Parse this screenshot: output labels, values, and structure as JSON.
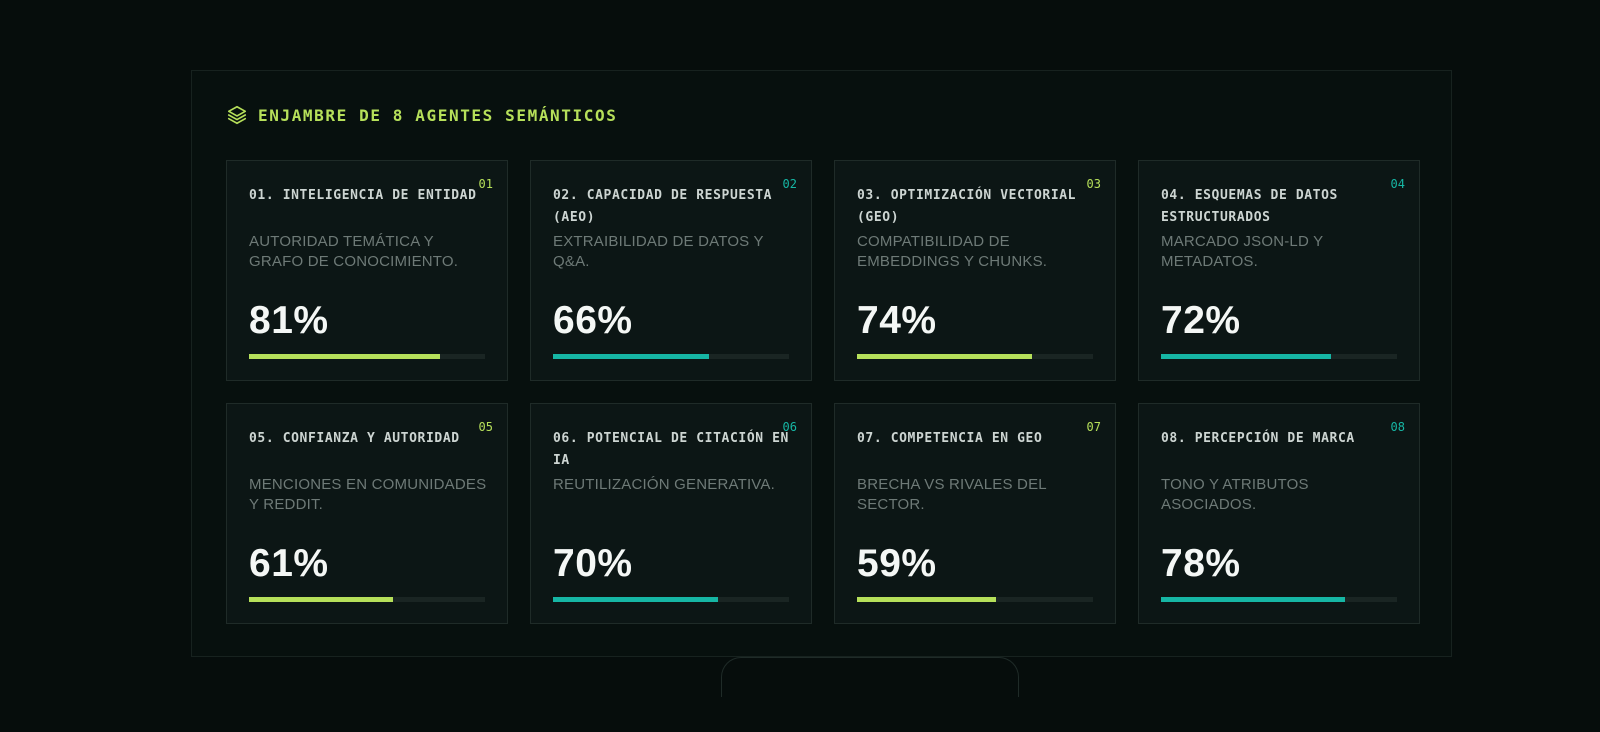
{
  "header": {
    "title": "ENJAMBRE DE 8 AGENTES SEMÁNTICOS",
    "icon": "layers-icon",
    "color": "#b6e05a"
  },
  "colors": {
    "lime": "#b6e05a",
    "teal": "#16b6a4"
  },
  "agents": [
    {
      "num": "01",
      "name": "01. INTELIGENCIA DE ENTIDAD",
      "desc": "AUTORIDAD TEMÁTICA Y GRAFO DE CONOCIMIENTO.",
      "pct": "81%",
      "value": 81,
      "accent": "#b6e05a"
    },
    {
      "num": "02",
      "name": "02. CAPACIDAD DE RESPUESTA (AEO)",
      "desc": "EXTRAIBILIDAD DE DATOS Y Q&A.",
      "pct": "66%",
      "value": 66,
      "accent": "#16b6a4"
    },
    {
      "num": "03",
      "name": "03. OPTIMIZACIÓN VECTORIAL (GEO)",
      "desc": "COMPATIBILIDAD DE EMBEDDINGS Y CHUNKS.",
      "pct": "74%",
      "value": 74,
      "accent": "#b6e05a"
    },
    {
      "num": "04",
      "name": "04. ESQUEMAS DE DATOS ESTRUCTURADOS",
      "desc": "MARCADO JSON-LD Y METADATOS.",
      "pct": "72%",
      "value": 72,
      "accent": "#16b6a4"
    },
    {
      "num": "05",
      "name": "05. CONFIANZA Y AUTORIDAD",
      "desc": "MENCIONES EN COMUNIDADES Y REDDIT.",
      "pct": "61%",
      "value": 61,
      "accent": "#b6e05a"
    },
    {
      "num": "06",
      "name": "06. POTENCIAL DE CITACIÓN EN IA",
      "desc": "REUTILIZACIÓN GENERATIVA.",
      "pct": "70%",
      "value": 70,
      "accent": "#16b6a4"
    },
    {
      "num": "07",
      "name": "07. COMPETENCIA EN GEO",
      "desc": "BRECHA VS RIVALES DEL SECTOR.",
      "pct": "59%",
      "value": 59,
      "accent": "#b6e05a"
    },
    {
      "num": "08",
      "name": "08. PERCEPCIÓN DE MARCA",
      "desc": "TONO Y ATRIBUTOS ASOCIADOS.",
      "pct": "78%",
      "value": 78,
      "accent": "#16b6a4"
    }
  ]
}
